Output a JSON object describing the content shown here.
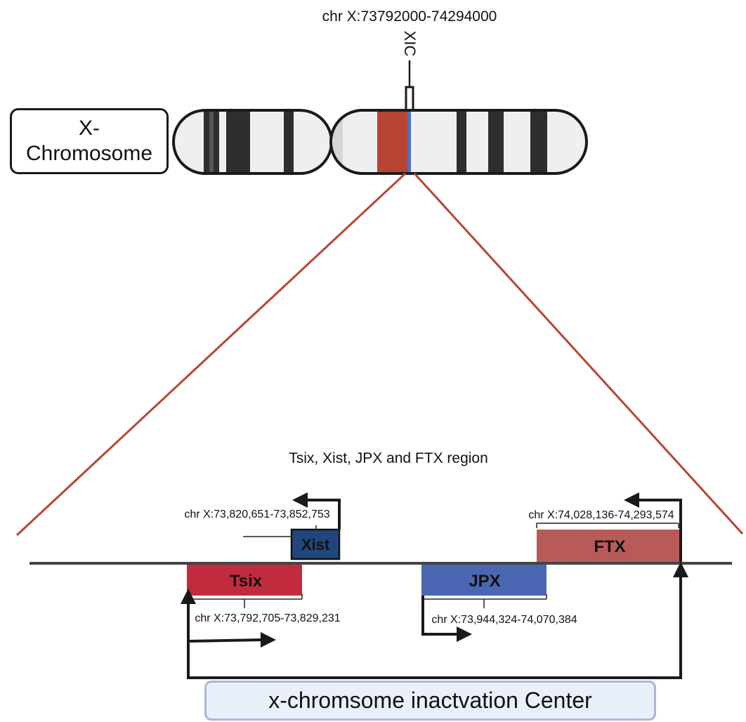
{
  "chromosome": {
    "label_line1": "X-",
    "label_line2": "Chromosome",
    "locus_label": "XIC",
    "locus_coords": "chr X:73792000-74294000",
    "highlight_color": "#b94434",
    "marker_color": "#4a72c4"
  },
  "region_title": "Tsix, Xist, JPX and FTX region",
  "genes": [
    {
      "name": "Xist",
      "coords": "chr X:73,820,651-73,852,753",
      "color": "#21467d"
    },
    {
      "name": "FTX",
      "coords": "chr X:74,028,136-74,293,574",
      "color": "#b85b58"
    },
    {
      "name": "Tsix",
      "coords": "chr X:73,792,705-73,829,231",
      "color": "#c22b3e"
    },
    {
      "name": "JPX",
      "coords": "chr X:73,944,324-74,070,384",
      "color": "#4b67b2"
    }
  ],
  "center_label": "x-chromsome inactvation Center",
  "zoom_line_color": "#b94434"
}
